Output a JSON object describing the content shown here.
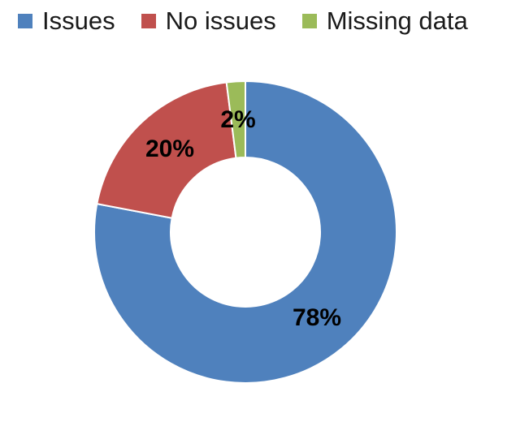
{
  "chart_data": {
    "type": "pie",
    "style": "doughnut",
    "legend_position": "top",
    "categories": [
      "Issues",
      "No issues",
      "Missing data"
    ],
    "values": [
      78,
      20,
      2
    ],
    "unit": "%",
    "data_labels": [
      "78%",
      "20%",
      "2%"
    ],
    "colors": [
      "#4F81BD",
      "#C0504D",
      "#9BBB59"
    ]
  }
}
